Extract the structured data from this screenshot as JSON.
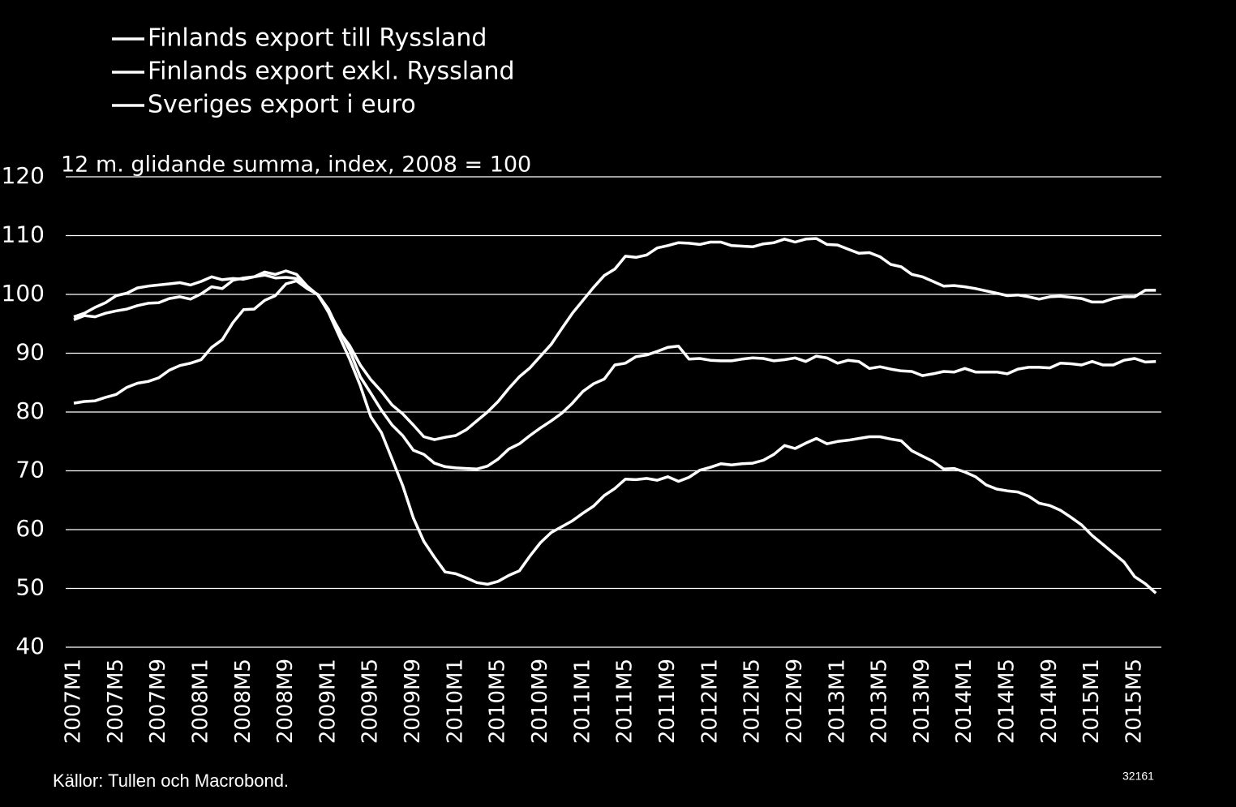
{
  "chart_data": {
    "type": "line",
    "subtitle": "12 m. glidande summa, index, 2008 = 100",
    "source": "Källor: Tullen och Macrobond.",
    "code": "32161",
    "categories": [
      "2007M1",
      null,
      null,
      null,
      "2007M5",
      null,
      null,
      null,
      "2007M9",
      null,
      null,
      null,
      "2008M1",
      null,
      null,
      null,
      "2008M5",
      null,
      null,
      null,
      "2008M9",
      null,
      null,
      null,
      "2009M1",
      null,
      null,
      null,
      "2009M5",
      null,
      null,
      null,
      "2009M9",
      null,
      null,
      null,
      "2010M1",
      null,
      null,
      null,
      "2010M5",
      null,
      null,
      null,
      "2010M9",
      null,
      null,
      null,
      "2011M1",
      null,
      null,
      null,
      "2011M5",
      null,
      null,
      null,
      "2011M9",
      null,
      null,
      null,
      "2012M1",
      null,
      null,
      null,
      "2012M5",
      null,
      null,
      null,
      "2012M9",
      null,
      null,
      null,
      "2013M1",
      null,
      null,
      null,
      "2013M5",
      null,
      null,
      null,
      "2013M9",
      null,
      null,
      null,
      "2014M1",
      null,
      null,
      null,
      "2014M5",
      null,
      null,
      null,
      "2014M9",
      null,
      null,
      null,
      "2015M1",
      null,
      null,
      null,
      "2015M5",
      null,
      null
    ],
    "series": [
      {
        "name": "Finlands export till Ryssland",
        "color": "#ffffff",
        "values": [
          81.5,
          81.8,
          81.9,
          82.5,
          83,
          84.2,
          84.9,
          85.2,
          85.8,
          87.1,
          87.9,
          88.3,
          88.9,
          91,
          92.3,
          95.2,
          97.4,
          97.5,
          99,
          99.8,
          101.8,
          102.3,
          101,
          100,
          97,
          93,
          89,
          84.5,
          79.2,
          76.5,
          72,
          67.5,
          62,
          58,
          55.3,
          52.8,
          52.5,
          51.8,
          51,
          50.7,
          51.2,
          52.2,
          53,
          55.5,
          57.8,
          59.5,
          60.5,
          61.5,
          62.8,
          64,
          65.8,
          67,
          68.6,
          68.5,
          68.7,
          68.4,
          69,
          68.2,
          68.9,
          70.1,
          70.6,
          71.2,
          71,
          71.2,
          71.3,
          71.8,
          72.8,
          74.3,
          73.8,
          74.7,
          75.5,
          74.6,
          75,
          75.2,
          75.5,
          75.8,
          75.8,
          75.4,
          75.1,
          73.4,
          72.5,
          71.6,
          70.3,
          70.4,
          69.8,
          69,
          67.6,
          66.9,
          66.6,
          66.4,
          65.7,
          64.5,
          64.1,
          63.3,
          62.1,
          60.8,
          59,
          57.5,
          56,
          54.5,
          52,
          50.8,
          49.2
        ]
      },
      {
        "name": "Finlands export exkl. Ryssland",
        "color": "#ffffff",
        "values": [
          96.2,
          96.8,
          97.8,
          98.6,
          99.8,
          100.2,
          101.1,
          101.4,
          101.6,
          101.8,
          102,
          101.6,
          102.2,
          103,
          102.5,
          102.7,
          102.6,
          103,
          103.8,
          103.4,
          104,
          103.4,
          101.4,
          99.9,
          97.2,
          94,
          90.5,
          86,
          83.2,
          80.3,
          77.8,
          76,
          73.5,
          72.8,
          71.3,
          70.7,
          70.5,
          70.4,
          70.3,
          70.8,
          72,
          73.7,
          74.6,
          76,
          77.3,
          78.5,
          79.8,
          81.5,
          83.5,
          84.8,
          85.6,
          88,
          88.3,
          89.4,
          89.7,
          90.3,
          91,
          91.2,
          89,
          89.1,
          88.8,
          88.7,
          88.7,
          89,
          89.2,
          89.1,
          88.7,
          88.9,
          89.2,
          88.6,
          89.5,
          89.2,
          88.3,
          88.8,
          88.6,
          87.4,
          87.7,
          87.3,
          87,
          86.9,
          86.2,
          86.5,
          86.9,
          86.8,
          87.4,
          86.8,
          86.8,
          86.8,
          86.5,
          87.3,
          87.6,
          87.6,
          87.5,
          88.3,
          88.2,
          88,
          88.6,
          88,
          88,
          88.8,
          89.1,
          88.5,
          88.6
        ]
      },
      {
        "name": "Sveriges export i euro",
        "color": "#ffffff",
        "values": [
          95.7,
          96.4,
          96.2,
          96.8,
          97.2,
          97.5,
          98.1,
          98.5,
          98.6,
          99.3,
          99.6,
          99.2,
          100.1,
          101.3,
          101,
          102.4,
          102.8,
          103,
          103.3,
          102.8,
          102.9,
          102.7,
          101,
          100,
          97.5,
          93.7,
          91.3,
          88,
          85.5,
          83.5,
          81.2,
          79.7,
          77.8,
          75.8,
          75.3,
          75.7,
          76,
          77,
          78.5,
          80,
          81.8,
          84,
          86,
          87.5,
          89.5,
          91.5,
          94.2,
          96.8,
          99,
          101.2,
          103.2,
          104.3,
          106.5,
          106.3,
          106.7,
          107.9,
          108.3,
          108.8,
          108.7,
          108.5,
          108.9,
          108.9,
          108.3,
          108.2,
          108.1,
          108.6,
          108.8,
          109.4,
          108.9,
          109.4,
          109.5,
          108.5,
          108.4,
          107.7,
          107,
          107.1,
          106.4,
          105.1,
          104.7,
          103.4,
          103,
          102.2,
          101.4,
          101.5,
          101.3,
          101,
          100.6,
          100.2,
          99.8,
          99.9,
          99.6,
          99.2,
          99.6,
          99.7,
          99.5,
          99.3,
          98.7,
          98.7,
          99.3,
          99.6,
          99.6,
          100.7,
          100.7
        ]
      }
    ],
    "ylim": [
      40,
      120
    ],
    "yticks": [
      40,
      50,
      60,
      70,
      80,
      90,
      100,
      110,
      120
    ],
    "grid": true
  }
}
